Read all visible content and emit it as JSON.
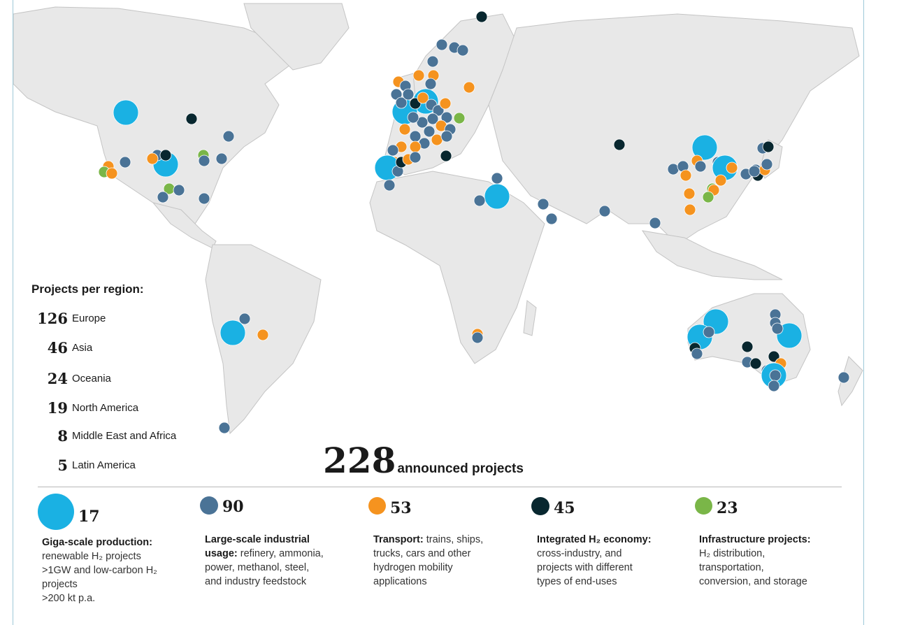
{
  "colors": {
    "land": "#e8e8e8",
    "ocean": "#ffffff",
    "giga": "#1ab1e3",
    "industrial": "#4a7396",
    "transport": "#f5931f",
    "integrated": "#08272f",
    "infrastructure": "#7ab648"
  },
  "regions_title": "Projects per region:",
  "regions": [
    {
      "count": "126",
      "name": "Europe"
    },
    {
      "count": "46",
      "name": "Asia"
    },
    {
      "count": "24",
      "name": "Oceania"
    },
    {
      "count": "19",
      "name": "North America"
    },
    {
      "count": "8",
      "name": "Middle East and Africa"
    },
    {
      "count": "5",
      "name": "Latin America"
    }
  ],
  "total": {
    "count": "228",
    "label": "announced projects"
  },
  "categories": [
    {
      "key": "giga",
      "count": "17",
      "title": "Giga-scale production:",
      "lines": [
        "renewable H₂ projects",
        ">1GW and low-carbon H₂",
        "projects",
        ">200 kt p.a."
      ]
    },
    {
      "key": "industrial",
      "count": "90",
      "title": "Large-scale industrial",
      "title2": "usage:",
      "lines": [
        "refinery, ammonia,",
        "power, methanol, steel,",
        "and industry feedstock"
      ]
    },
    {
      "key": "transport",
      "count": "53",
      "title": "Transport:",
      "lines": [
        "trains, ships,",
        "trucks, cars and other",
        "hydrogen mobility",
        "applications"
      ]
    },
    {
      "key": "integrated",
      "count": "45",
      "title": "Integrated H₂ economy:",
      "lines": [
        "cross-industry, and",
        "projects with different",
        "types of end-uses"
      ]
    },
    {
      "key": "infrastructure",
      "count": "23",
      "title": "Infrastructure projects:",
      "lines": [
        "H₂ distribution,",
        "transportation,",
        "conversion, and storage"
      ]
    }
  ]
}
